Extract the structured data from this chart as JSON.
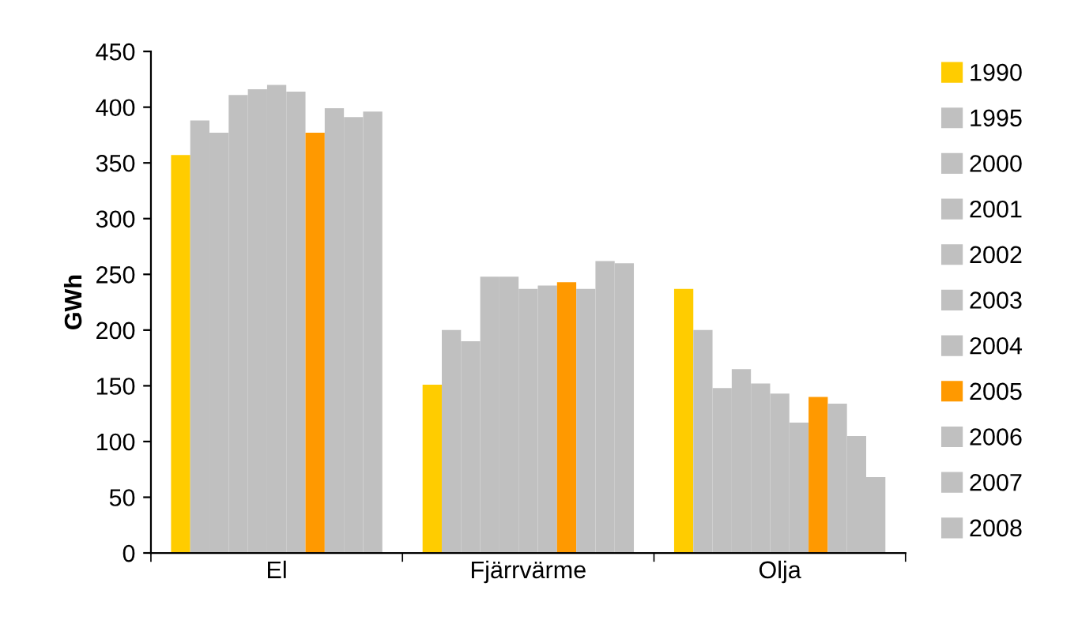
{
  "chart_data": {
    "type": "bar",
    "ylabel": "GWh",
    "categories": [
      "El",
      "Fjärrvärme",
      "Olja"
    ],
    "ylim": [
      0,
      450
    ],
    "yticks": [
      0,
      50,
      100,
      150,
      200,
      250,
      300,
      350,
      400,
      450
    ],
    "grid": false,
    "legend": "right",
    "series": [
      {
        "name": "1990",
        "color": "#ffcc00",
        "values": [
          357,
          151,
          237
        ]
      },
      {
        "name": "1995",
        "color": "#c0c0c0",
        "values": [
          388,
          200,
          200
        ]
      },
      {
        "name": "2000",
        "color": "#c0c0c0",
        "values": [
          377,
          190,
          148
        ]
      },
      {
        "name": "2001",
        "color": "#c0c0c0",
        "values": [
          411,
          248,
          165
        ]
      },
      {
        "name": "2002",
        "color": "#c0c0c0",
        "values": [
          416,
          248,
          152
        ]
      },
      {
        "name": "2003",
        "color": "#c0c0c0",
        "values": [
          420,
          237,
          143
        ]
      },
      {
        "name": "2004",
        "color": "#c0c0c0",
        "values": [
          414,
          240,
          117
        ]
      },
      {
        "name": "2005",
        "color": "#ff9900",
        "values": [
          377,
          243,
          140
        ]
      },
      {
        "name": "2006",
        "color": "#c0c0c0",
        "values": [
          399,
          237,
          134
        ]
      },
      {
        "name": "2007",
        "color": "#c0c0c0",
        "values": [
          391,
          262,
          105
        ]
      },
      {
        "name": "2008",
        "color": "#c0c0c0",
        "values": [
          396,
          260,
          68
        ]
      }
    ]
  }
}
